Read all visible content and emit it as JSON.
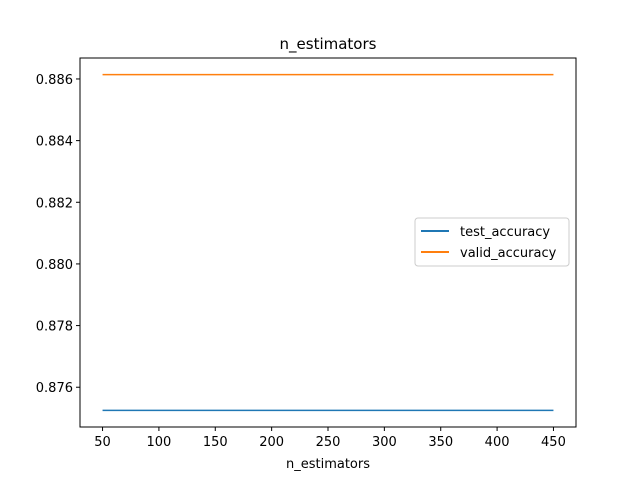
{
  "chart_data": {
    "type": "line",
    "title": "n_estimators",
    "xlabel": "n_estimators",
    "ylabel": "",
    "x": [
      50,
      100,
      150,
      200,
      250,
      300,
      350,
      400,
      450
    ],
    "series": [
      {
        "name": "test_accuracy",
        "values": [
          0.87525,
          0.87525,
          0.87525,
          0.87525,
          0.87525,
          0.87525,
          0.87525,
          0.87525,
          0.87525
        ],
        "color": "#1f77b4"
      },
      {
        "name": "valid_accuracy",
        "values": [
          0.88614,
          0.88614,
          0.88614,
          0.88614,
          0.88614,
          0.88614,
          0.88614,
          0.88614,
          0.88614
        ],
        "color": "#ff7f0e"
      }
    ],
    "xlim": [
      30,
      470
    ],
    "ylim": [
      0.87471,
      0.88668
    ],
    "xticks": [
      50,
      100,
      150,
      200,
      250,
      300,
      350,
      400,
      450
    ],
    "yticks": [
      0.876,
      0.878,
      0.88,
      0.882,
      0.884,
      0.886
    ],
    "ytick_labels": [
      "0.876",
      "0.878",
      "0.880",
      "0.882",
      "0.884",
      "0.886"
    ],
    "grid": false,
    "legend_position": "center-right"
  }
}
